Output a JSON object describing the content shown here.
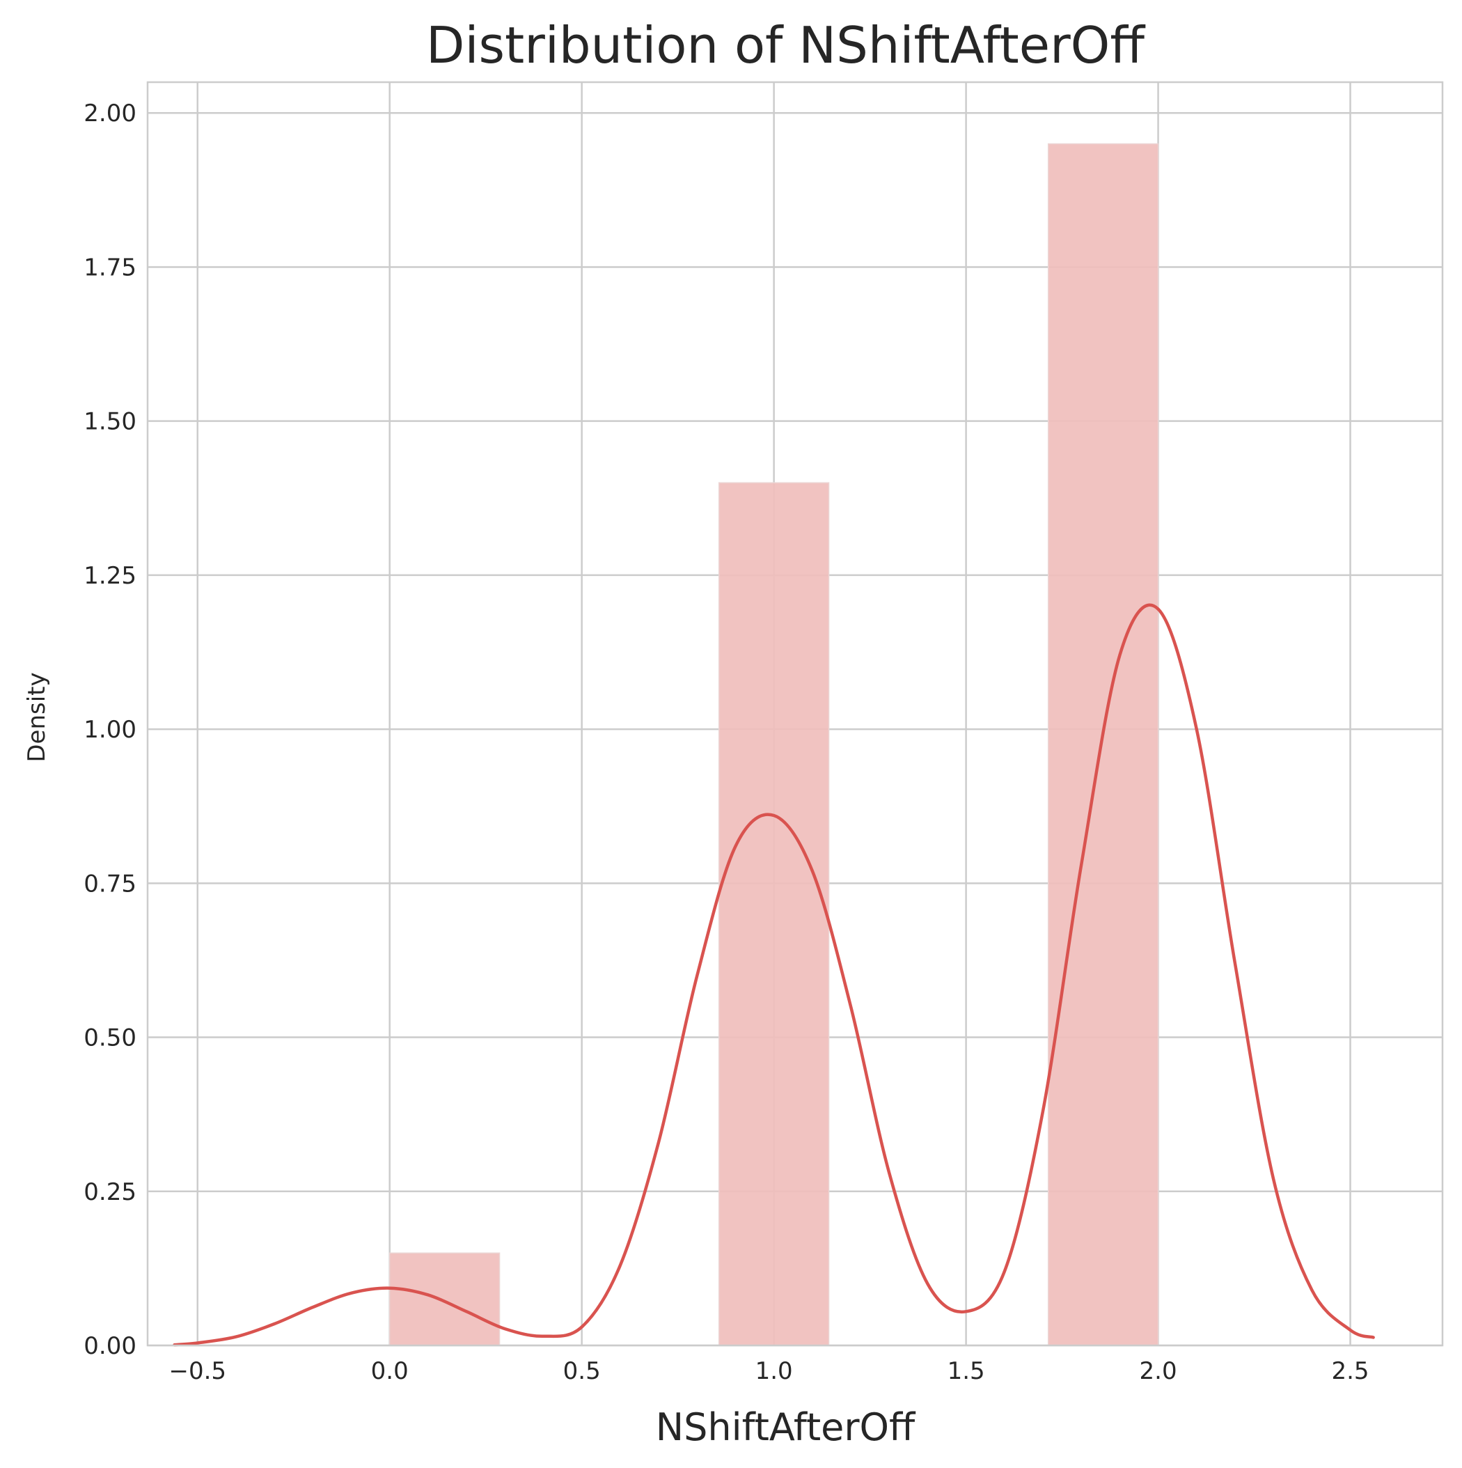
{
  "chart_data": {
    "type": "bar",
    "title": "Distribution of NShiftAfterOff",
    "xlabel": "NShiftAfterOff",
    "ylabel": "Density",
    "xlim": [
      -0.63,
      2.74
    ],
    "ylim": [
      0,
      2.05
    ],
    "xticks": [
      -0.5,
      0.0,
      0.5,
      1.0,
      1.5,
      2.0,
      2.5
    ],
    "xtick_labels": [
      "−0.5",
      "0.0",
      "0.5",
      "1.0",
      "1.5",
      "2.0",
      "2.5"
    ],
    "yticks": [
      0.0,
      0.25,
      0.5,
      0.75,
      1.0,
      1.25,
      1.5,
      1.75,
      2.0
    ],
    "ytick_labels": [
      "0.00",
      "0.25",
      "0.50",
      "0.75",
      "1.00",
      "1.25",
      "1.50",
      "1.75",
      "2.00"
    ],
    "grid": true,
    "bins": [
      {
        "x0": 0.0,
        "x1": 0.286,
        "density": 0.15
      },
      {
        "x0": 0.857,
        "x1": 1.143,
        "density": 1.4
      },
      {
        "x0": 1.714,
        "x1": 2.0,
        "density": 1.95
      }
    ],
    "kde": {
      "x": [
        -0.56,
        -0.5,
        -0.4,
        -0.3,
        -0.2,
        -0.1,
        0.0,
        0.1,
        0.2,
        0.3,
        0.4,
        0.5,
        0.6,
        0.7,
        0.8,
        0.9,
        1.0,
        1.1,
        1.2,
        1.3,
        1.4,
        1.5,
        1.6,
        1.7,
        1.8,
        1.9,
        2.0,
        2.1,
        2.2,
        2.3,
        2.4,
        2.5,
        2.56
      ],
      "y": [
        0.001,
        0.004,
        0.014,
        0.035,
        0.062,
        0.085,
        0.093,
        0.082,
        0.055,
        0.027,
        0.015,
        0.03,
        0.13,
        0.33,
        0.6,
        0.81,
        0.86,
        0.77,
        0.55,
        0.28,
        0.1,
        0.055,
        0.12,
        0.38,
        0.78,
        1.12,
        1.195,
        1.0,
        0.62,
        0.27,
        0.09,
        0.025,
        0.013
      ]
    },
    "colors": {
      "bar": "#f0bebc",
      "line": "#d9534f",
      "grid": "#cccccc",
      "text": "#262626"
    }
  }
}
